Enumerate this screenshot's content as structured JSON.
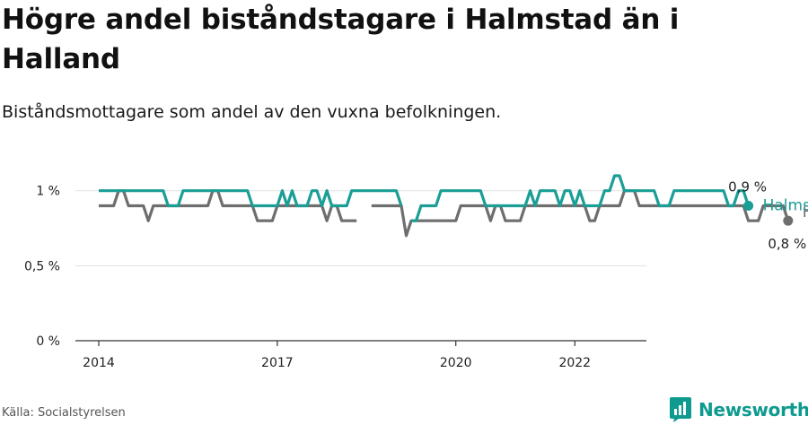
{
  "title": "Högre andel biståndstagare i Halmstad än i Halland",
  "subtitle": "Biståndsmottagare som andel av den vuxna befolkningen.",
  "source": "Källa: Socialstyrelsen",
  "brand": {
    "name": "Newsworthy",
    "icon": "newsworthy-logo-icon"
  },
  "chart_data": {
    "type": "line",
    "x_ticks": [
      2014,
      2017,
      2020,
      2022
    ],
    "x_range": [
      2014.0,
      2022.75
    ],
    "y_ticks": [
      0,
      0.5,
      1
    ],
    "y_tick_labels": [
      "0 %",
      "0,5 %",
      "1 %"
    ],
    "y_range": [
      0,
      1.1
    ],
    "grid": "horizontal",
    "series": [
      {
        "name": "Halmstads kommun",
        "color": "#1a9e96",
        "end_label": "0,9 %",
        "start": 2014.0,
        "step_years": 0.0833333,
        "values": [
          1.0,
          1.0,
          1.0,
          1.0,
          1.0,
          1.0,
          1.0,
          1.0,
          1.0,
          1.0,
          1.0,
          1.0,
          1.0,
          1.0,
          0.9,
          0.9,
          0.9,
          1.0,
          1.0,
          1.0,
          1.0,
          1.0,
          1.0,
          1.0,
          1.0,
          1.0,
          1.0,
          1.0,
          1.0,
          1.0,
          1.0,
          0.9,
          0.9,
          0.9,
          0.9,
          0.9,
          0.9,
          1.0,
          0.9,
          1.0,
          0.9,
          0.9,
          0.9,
          1.0,
          1.0,
          0.9,
          1.0,
          0.9,
          0.9,
          0.9,
          0.9,
          1.0,
          1.0,
          1.0,
          1.0,
          1.0,
          1.0,
          1.0,
          1.0,
          1.0,
          1.0,
          0.9,
          null,
          0.8,
          0.8,
          0.9,
          0.9,
          0.9,
          0.9,
          1.0,
          1.0,
          1.0,
          1.0,
          1.0,
          1.0,
          1.0,
          1.0,
          1.0,
          0.9,
          0.9,
          0.9,
          0.9,
          0.9,
          0.9,
          0.9,
          0.9,
          0.9,
          1.0,
          0.9,
          1.0,
          1.0,
          1.0,
          1.0,
          0.9,
          1.0,
          1.0,
          0.9,
          1.0,
          0.9,
          0.9,
          0.9,
          0.9,
          1.0,
          1.0,
          1.1,
          1.1,
          1.0,
          1.0,
          1.0,
          1.0,
          1.0,
          1.0,
          1.0,
          0.9,
          0.9,
          0.9,
          1.0,
          1.0,
          1.0,
          1.0,
          1.0,
          1.0,
          1.0,
          1.0,
          1.0,
          1.0,
          1.0,
          0.9,
          0.9,
          1.0,
          1.0,
          0.9
        ]
      },
      {
        "name": "Hallands län",
        "color": "#6e6e6e",
        "end_label": "0,8 %",
        "start": 2014.0,
        "step_years": 0.0833333,
        "values": [
          0.9,
          0.9,
          0.9,
          0.9,
          1.0,
          1.0,
          0.9,
          0.9,
          0.9,
          0.9,
          0.8,
          0.9,
          0.9,
          0.9,
          0.9,
          0.9,
          0.9,
          0.9,
          0.9,
          0.9,
          0.9,
          0.9,
          0.9,
          1.0,
          1.0,
          0.9,
          0.9,
          0.9,
          0.9,
          0.9,
          0.9,
          0.9,
          0.8,
          0.8,
          0.8,
          0.8,
          0.9,
          0.9,
          0.9,
          0.9,
          0.9,
          0.9,
          0.9,
          0.9,
          0.9,
          0.9,
          0.8,
          0.9,
          0.9,
          0.8,
          0.8,
          0.8,
          0.8,
          null,
          null,
          0.9,
          0.9,
          0.9,
          0.9,
          0.9,
          0.9,
          0.9,
          0.7,
          0.8,
          0.8,
          0.8,
          0.8,
          0.8,
          0.8,
          0.8,
          0.8,
          0.8,
          0.8,
          0.9,
          0.9,
          0.9,
          0.9,
          0.9,
          0.9,
          0.8,
          0.9,
          0.9,
          0.8,
          0.8,
          0.8,
          0.8,
          0.9,
          0.9,
          0.9,
          0.9,
          0.9,
          0.9,
          0.9,
          0.9,
          0.9,
          0.9,
          0.9,
          0.9,
          0.9,
          0.8,
          0.8,
          0.9,
          0.9,
          0.9,
          0.9,
          0.9,
          1.0,
          1.0,
          1.0,
          0.9,
          0.9,
          0.9,
          0.9,
          0.9,
          0.9,
          0.9,
          0.9,
          0.9,
          0.9,
          0.9,
          0.9,
          0.9,
          0.9,
          0.9,
          0.9,
          0.9,
          0.9,
          0.9,
          0.9,
          0.9,
          0.9,
          0.8,
          0.8,
          0.8,
          0.9,
          0.9,
          0.9,
          0.9,
          0.9,
          0.8
        ]
      }
    ]
  }
}
